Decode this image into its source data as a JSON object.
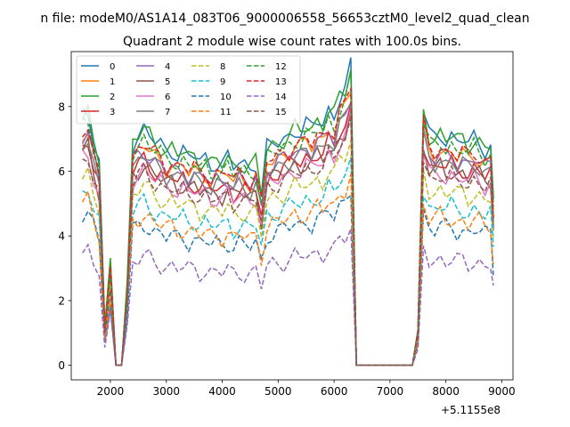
{
  "chart_data": {
    "type": "line",
    "suptitle": "n file: modeM0/AS1A14_083T06_9000006558_56653cztM0_level2_quad_clean",
    "title": "Quadrant 2 module wise count rates with 100.0s bins.",
    "xlabel": "",
    "ylabel": "",
    "x_offset_label": "+5.1155e8",
    "xlim": [
      1300,
      9200
    ],
    "ylim": [
      -0.45,
      9.7
    ],
    "xticks": [
      2000,
      3000,
      4000,
      5000,
      6000,
      7000,
      8000,
      9000
    ],
    "yticks": [
      0,
      2,
      4,
      6,
      8
    ],
    "x": [
      1500,
      1600,
      1700,
      1800,
      1900,
      2000,
      2100,
      2200,
      2300,
      2400,
      2500,
      2600,
      2700,
      2800,
      2900,
      3000,
      3100,
      3200,
      3300,
      3400,
      3500,
      3600,
      3700,
      3800,
      3900,
      4000,
      4100,
      4200,
      4300,
      4400,
      4500,
      4600,
      4700,
      4800,
      4900,
      5000,
      5100,
      5200,
      5300,
      5400,
      5500,
      5600,
      5700,
      5800,
      5900,
      6000,
      6100,
      6200,
      6300,
      6400,
      6500,
      6600,
      6700,
      6800,
      6900,
      7000,
      7100,
      7200,
      7300,
      7400,
      7500,
      7600,
      7700,
      7800,
      7900,
      8000,
      8100,
      8200,
      8300,
      8400,
      8500,
      8600,
      8700,
      8800,
      8850
    ],
    "segments": [
      [
        0,
        17
      ],
      [
        18,
        26
      ],
      [
        27,
        39
      ],
      [
        40,
        48
      ],
      [
        49,
        58
      ],
      [
        59,
        74
      ]
    ],
    "series": [
      {
        "name": "0",
        "color": "#1f77b4",
        "dash": false,
        "scale": 1.0,
        "seed": 1
      },
      {
        "name": "1",
        "color": "#ff7f0e",
        "dash": false,
        "scale": 0.93,
        "seed": 2
      },
      {
        "name": "2",
        "color": "#2ca02c",
        "dash": false,
        "scale": 1.0,
        "seed": 3
      },
      {
        "name": "3",
        "color": "#d62728",
        "dash": false,
        "scale": 0.87,
        "seed": 4
      },
      {
        "name": "4",
        "color": "#9467bd",
        "dash": false,
        "scale": 0.91,
        "seed": 5
      },
      {
        "name": "5",
        "color": "#8c564b",
        "dash": false,
        "scale": 0.85,
        "seed": 6
      },
      {
        "name": "6",
        "color": "#e377c2",
        "dash": false,
        "scale": 0.83,
        "seed": 7
      },
      {
        "name": "7",
        "color": "#7f7f7f",
        "dash": false,
        "scale": 0.89,
        "seed": 8
      },
      {
        "name": "8",
        "color": "#bcbd22",
        "dash": true,
        "scale": 0.76,
        "seed": 9
      },
      {
        "name": "9",
        "color": "#17becf",
        "dash": true,
        "scale": 0.69,
        "seed": 10
      },
      {
        "name": "10",
        "color": "#1f77b4",
        "dash": true,
        "scale": 0.6,
        "seed": 11
      },
      {
        "name": "11",
        "color": "#ff7f0e",
        "dash": true,
        "scale": 0.64,
        "seed": 12
      },
      {
        "name": "12",
        "color": "#2ca02c",
        "dash": true,
        "scale": 0.96,
        "seed": 13
      },
      {
        "name": "13",
        "color": "#d62728",
        "dash": true,
        "scale": 0.94,
        "seed": 14
      },
      {
        "name": "14",
        "color": "#9467bd",
        "dash": true,
        "scale": 0.46,
        "seed": 15
      },
      {
        "name": "15",
        "color": "#8c564b",
        "dash": true,
        "scale": 0.82,
        "seed": 16
      }
    ],
    "base_profile": [
      7.7,
      7.9,
      7.0,
      6.3,
      1.2,
      3.1,
      0.0,
      0.0,
      2.5,
      6.9,
      7.1,
      7.3,
      7.1,
      6.9,
      6.8,
      6.6,
      6.7,
      6.5,
      6.6,
      6.4,
      6.5,
      6.3,
      6.4,
      6.2,
      6.3,
      6.2,
      6.4,
      6.1,
      6.3,
      6.2,
      6.1,
      6.3,
      5.3,
      6.7,
      6.8,
      6.9,
      7.0,
      7.1,
      7.3,
      7.2,
      7.4,
      7.3,
      7.6,
      7.5,
      7.9,
      7.7,
      8.3,
      8.5,
      9.2,
      0.0,
      0.0,
      0.0,
      0.0,
      0.0,
      0.0,
      0.0,
      0.0,
      0.0,
      0.0,
      0.0,
      1.1,
      7.9,
      7.1,
      7.0,
      7.2,
      7.0,
      7.1,
      6.9,
      7.0,
      6.8,
      7.0,
      6.9,
      6.7,
      6.8,
      5.0
    ],
    "legend": {
      "placement": "upper left",
      "columns": 4
    }
  }
}
